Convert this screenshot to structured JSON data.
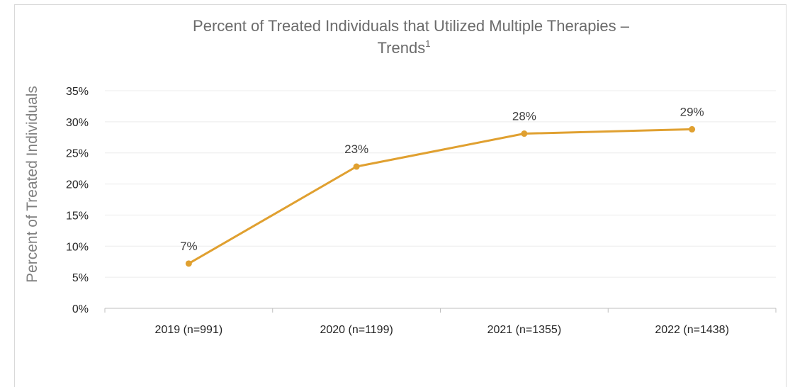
{
  "chart_data": {
    "type": "line",
    "title": "Percent of Treated Individuals that Utilized Multiple Therapies –",
    "title_line2": "Trends",
    "title_superscript": "1",
    "xlabel": "",
    "ylabel": "Percent of Treated Individuals",
    "categories": [
      "2019 (n=991)",
      "2020 (n=1199)",
      "2021 (n=1355)",
      "2022 (n=1438)"
    ],
    "series": [
      {
        "values": [
          7.2,
          22.8,
          28.1,
          28.8
        ],
        "data_labels": [
          "7%",
          "23%",
          "28%",
          "29%"
        ],
        "color": "#e0a030"
      }
    ],
    "ylim": [
      0,
      35
    ],
    "yticks": [
      0,
      5,
      10,
      15,
      20,
      25,
      30,
      35
    ],
    "ytick_labels": [
      "0%",
      "5%",
      "10%",
      "15%",
      "20%",
      "25%",
      "30%",
      "35%"
    ],
    "grid": true,
    "legend": "none"
  },
  "colors": {
    "line": "#e0a030",
    "grid": "#ececec",
    "axis": "#bfbfbf"
  }
}
